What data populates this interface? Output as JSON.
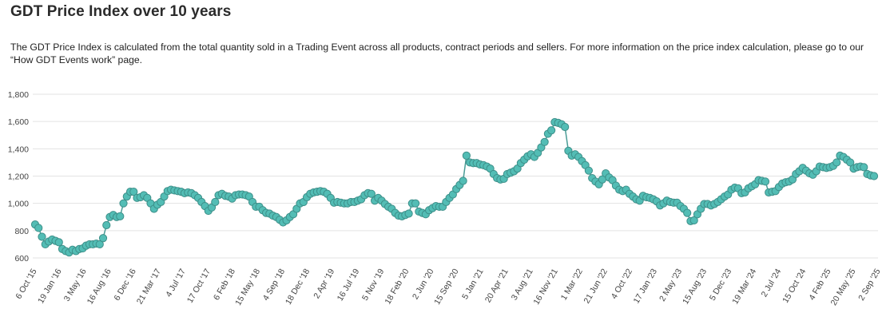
{
  "page": {
    "title": "GDT Price Index over 10 years",
    "description": "The GDT Price Index is calculated from the total quantity sold in a Trading Event across all products, contract periods and sellers. For more information on the price index calculation, please go to our “How GDT Events work” page."
  },
  "colors": {
    "line": "#4a9c96",
    "marker_fill": "#53bdb5",
    "marker_stroke": "#3d8f89",
    "grid": "#e3e3e3"
  },
  "chart_data": {
    "type": "line",
    "title": "GDT Price Index over 10 years",
    "xlabel": "",
    "ylabel": "",
    "ylim": [
      600,
      1800
    ],
    "yticks": [
      600,
      800,
      1000,
      1200,
      1400,
      1600,
      1800
    ],
    "ytick_labels": [
      "600",
      "800",
      "1,000",
      "1,200",
      "1,400",
      "1,600",
      "1,800"
    ],
    "grid": true,
    "legend": "none",
    "x_tick_labels": [
      "6 Oct '15",
      "19 Jan '16",
      "3 May '16",
      "16 Aug '16",
      "6 Dec '16",
      "21 Mar '17",
      "4 Jul '17",
      "17 Oct '17",
      "6 Feb '18",
      "15 May '18",
      "4 Sep '18",
      "18 Dec '18",
      "2 Apr '19",
      "16 Jul '19",
      "5 Nov '19",
      "18 Feb '20",
      "2 Jun '20",
      "15 Sep '20",
      "5 Jan '21",
      "20 Apr '21",
      "3 Aug '21",
      "16 Nov '21",
      "1 Mar '22",
      "21 Jun '22",
      "4 Oct '22",
      "17 Jan '23",
      "2 May '23",
      "15 Aug '23",
      "5 Dec '23",
      "19 Mar '24",
      "2 Jul '24",
      "15 Oct '24",
      "4 Feb '25",
      "20 May '25",
      "2 Sep '25"
    ],
    "series": [
      {
        "name": "GDT Price Index",
        "values": [
          845,
          820,
          755,
          700,
          720,
          735,
          725,
          715,
          665,
          650,
          640,
          660,
          650,
          665,
          670,
          690,
          700,
          700,
          705,
          700,
          745,
          840,
          900,
          915,
          900,
          905,
          1000,
          1050,
          1085,
          1085,
          1040,
          1045,
          1060,
          1040,
          1000,
          960,
          990,
          1010,
          1050,
          1090,
          1100,
          1095,
          1090,
          1085,
          1075,
          1080,
          1075,
          1060,
          1040,
          1010,
          980,
          945,
          970,
          1010,
          1060,
          1070,
          1055,
          1050,
          1035,
          1060,
          1065,
          1065,
          1060,
          1050,
          1010,
          975,
          975,
          950,
          930,
          925,
          910,
          900,
          880,
          860,
          875,
          900,
          920,
          960,
          1000,
          1010,
          1045,
          1070,
          1080,
          1085,
          1090,
          1085,
          1070,
          1040,
          1005,
          1010,
          1005,
          1000,
          1000,
          1010,
          1010,
          1020,
          1030,
          1060,
          1075,
          1070,
          1020,
          1040,
          1020,
          995,
          975,
          960,
          930,
          910,
          905,
          915,
          925,
          1000,
          1000,
          940,
          930,
          920,
          950,
          965,
          980,
          975,
          975,
          1010,
          1040,
          1065,
          1105,
          1135,
          1165,
          1350,
          1300,
          1295,
          1295,
          1285,
          1280,
          1270,
          1255,
          1215,
          1185,
          1175,
          1180,
          1215,
          1225,
          1235,
          1255,
          1295,
          1320,
          1345,
          1360,
          1340,
          1370,
          1410,
          1450,
          1510,
          1535,
          1595,
          1590,
          1580,
          1560,
          1385,
          1350,
          1360,
          1340,
          1310,
          1280,
          1240,
          1185,
          1160,
          1140,
          1175,
          1220,
          1190,
          1170,
          1130,
          1100,
          1090,
          1100,
          1070,
          1050,
          1030,
          1020,
          1055,
          1045,
          1040,
          1030,
          1015,
          985,
          1000,
          1020,
          1010,
          1005,
          1005,
          980,
          960,
          930,
          870,
          875,
          920,
          960,
          995,
          995,
          985,
          995,
          1010,
          1030,
          1050,
          1065,
          1100,
          1115,
          1110,
          1075,
          1080,
          1110,
          1125,
          1140,
          1170,
          1165,
          1160,
          1080,
          1085,
          1090,
          1120,
          1145,
          1155,
          1160,
          1175,
          1215,
          1235,
          1260,
          1240,
          1220,
          1210,
          1235,
          1270,
          1265,
          1260,
          1265,
          1275,
          1300,
          1350,
          1340,
          1320,
          1300,
          1255,
          1265,
          1270,
          1265,
          1215,
          1205,
          1200
        ]
      }
    ]
  }
}
